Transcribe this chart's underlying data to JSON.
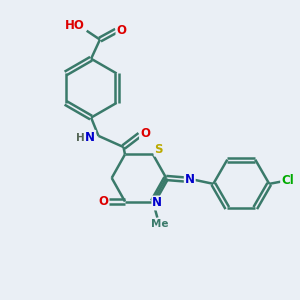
{
  "bg_color": "#eaeff5",
  "bond_color": "#3a7a6a",
  "bond_width": 1.8,
  "atom_colors": {
    "O": "#dd0000",
    "N": "#0000cc",
    "S": "#bbaa00",
    "Cl": "#00aa00",
    "C": "#3a7a6a",
    "H": "#556655"
  },
  "font_size": 8.5,
  "fig_size": [
    3.0,
    3.0
  ],
  "dpi": 100
}
